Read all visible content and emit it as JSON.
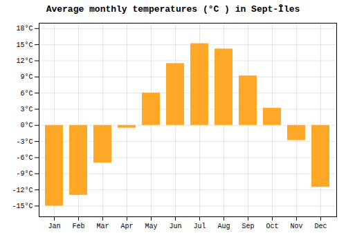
{
  "chart_data": {
    "type": "bar",
    "title": "Average monthly temperatures (°C ) in Sept-Îles",
    "categories": [
      "Jan",
      "Feb",
      "Mar",
      "Apr",
      "May",
      "Jun",
      "Jul",
      "Aug",
      "Sep",
      "Oct",
      "Nov",
      "Dec"
    ],
    "values": [
      -15,
      -13,
      -7,
      -0.5,
      6,
      11.5,
      15.2,
      14.2,
      9.2,
      3.2,
      -2.8,
      -11.5
    ],
    "color": "#FFA726",
    "ylim": [
      -17,
      19
    ],
    "yticks": [
      {
        "value": -15,
        "label": "-15°C"
      },
      {
        "value": -12,
        "label": "-12°C"
      },
      {
        "value": -9,
        "label": "-9°C"
      },
      {
        "value": -6,
        "label": "-6°C"
      },
      {
        "value": -3,
        "label": "-3°C"
      },
      {
        "value": 0,
        "label": "0°C"
      },
      {
        "value": 3,
        "label": "3°C"
      },
      {
        "value": 6,
        "label": "6°C"
      },
      {
        "value": 9,
        "label": "9°C"
      },
      {
        "value": 12,
        "label": "12°C"
      },
      {
        "value": 15,
        "label": "15°C"
      },
      {
        "value": 18,
        "label": "18°C"
      }
    ],
    "grid": true
  }
}
